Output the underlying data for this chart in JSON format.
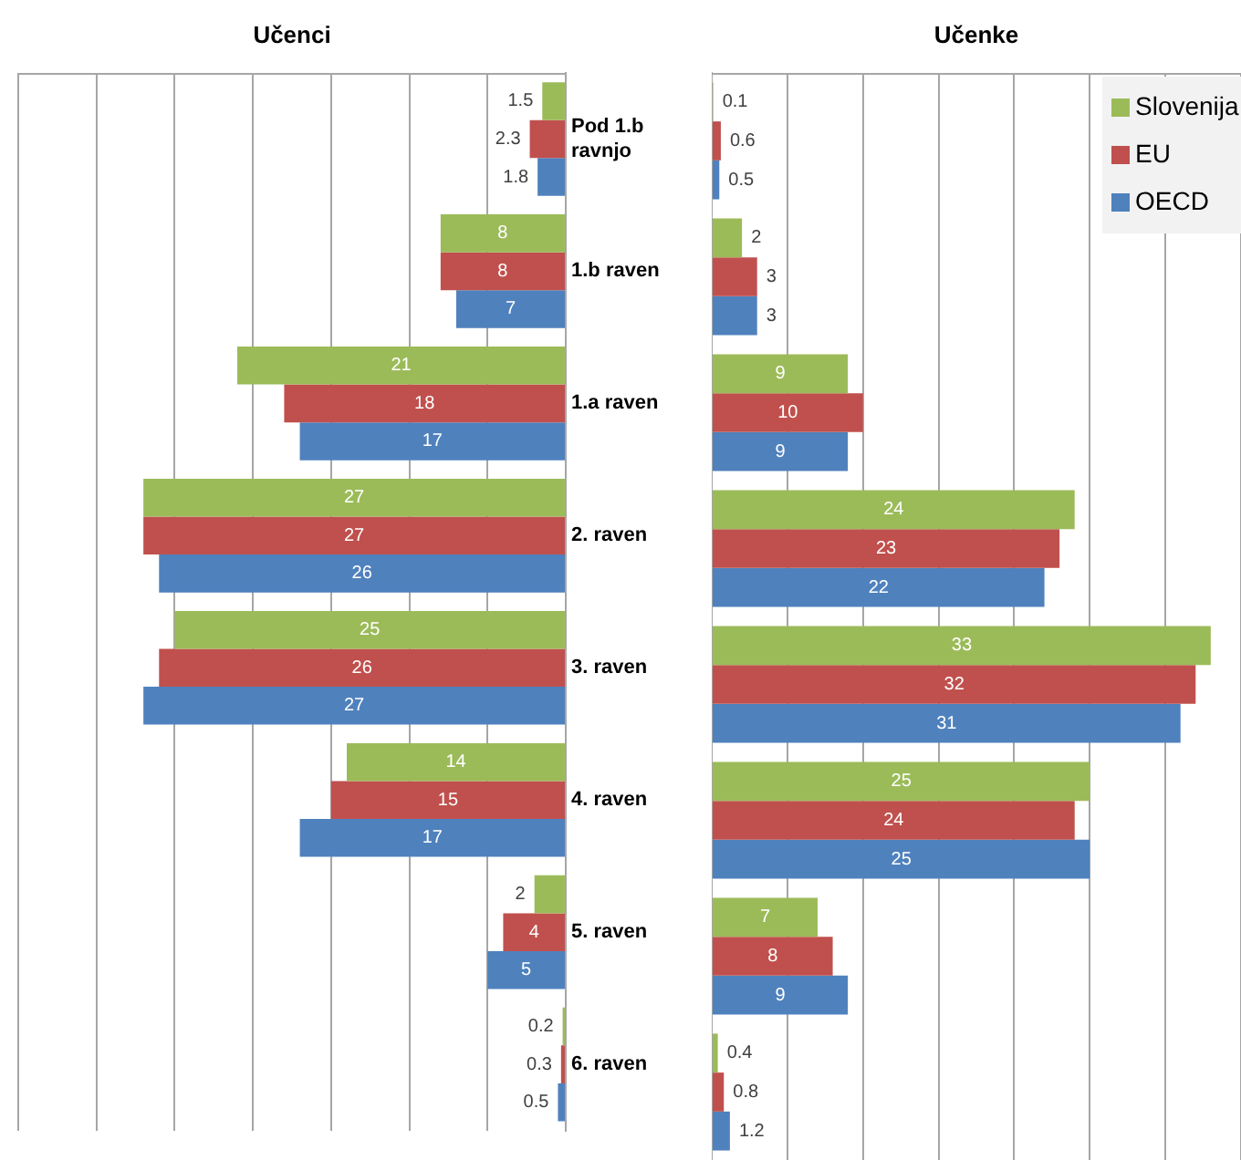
{
  "chart_data": [
    {
      "type": "bar",
      "orientation": "horizontal",
      "title": "Učenci",
      "categories": [
        "Pod 1.b ravnjo",
        "1.b raven",
        "1.a raven",
        "2. raven",
        "3. raven",
        "4. raven",
        "5. raven",
        "6. raven"
      ],
      "series": [
        {
          "color": "#9bbb59",
          "values": [
            1.5,
            8,
            21,
            27,
            25,
            14,
            2,
            0.2
          ]
        },
        {
          "color": "#c0504d",
          "values": [
            2.3,
            8,
            18,
            27,
            26,
            15,
            4,
            0.3
          ]
        },
        {
          "color": "#4f81bd",
          "values": [
            1.8,
            7,
            17,
            26,
            27,
            17,
            5,
            0.5
          ]
        }
      ],
      "xlim": [
        35,
        0
      ],
      "grid": "x",
      "data_labels": true,
      "tick_labels": "y"
    },
    {
      "type": "bar",
      "orientation": "horizontal",
      "title": "Učenke",
      "categories": [
        null,
        null,
        null,
        null,
        null,
        null,
        null,
        null
      ],
      "series": [
        {
          "name": "Slovenija",
          "color": "#9bbb59",
          "values": [
            0.1,
            2,
            9,
            24,
            33,
            25,
            7,
            0.4
          ]
        },
        {
          "name": "EU",
          "color": "#c0504d",
          "values": [
            0.6,
            3,
            10,
            23,
            32,
            24,
            8,
            0.8
          ]
        },
        {
          "name": "OECD",
          "color": "#4f81bd",
          "values": [
            0.5,
            3,
            9,
            22,
            31,
            25,
            9,
            1.2
          ]
        }
      ],
      "xlim": [
        0,
        35
      ],
      "grid": "x",
      "data_labels": true,
      "tick_labels": false,
      "legend": "top right"
    }
  ]
}
